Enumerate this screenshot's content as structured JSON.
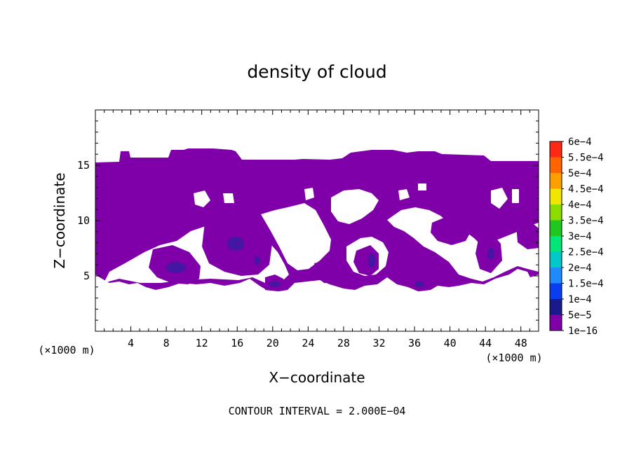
{
  "chart_data": {
    "type": "contour",
    "title": "density of cloud",
    "xlabel": "X−coordinate",
    "ylabel": "Z−coordinate",
    "x_unit": "(×1000 m)",
    "z_unit": "(×1000 m)",
    "xlim": [
      0,
      50
    ],
    "ylim": [
      0,
      20
    ],
    "xticks": [
      4,
      8,
      12,
      16,
      20,
      24,
      28,
      32,
      36,
      40,
      44,
      48
    ],
    "yticks": [
      5,
      10,
      15
    ],
    "contour_interval": "CONTOUR INTERVAL = 2.000E−04",
    "colorbar": {
      "levels": [
        "1e−16",
        "5e−5",
        "1e−4",
        "1.5e−4",
        "2e−4",
        "2.5e−4",
        "3e−4",
        "3.5e−4",
        "4e−4",
        "4.5e−4",
        "5e−4",
        "5.5e−4",
        "6e−4"
      ],
      "colors": [
        "#7f00a8",
        "#1a1a8c",
        "#0a3cf0",
        "#1e8cff",
        "#00c8c8",
        "#00e678",
        "#1ec81e",
        "#8cdc00",
        "#f0e600",
        "#ffa000",
        "#ff6400",
        "#ff2814",
        "#ff8c8c"
      ]
    },
    "cloud_layer": {
      "main_band_z": [
        4.5,
        15.4
      ],
      "max_value": "about 5e−5 in small cores",
      "core_x": [
        9.5,
        18,
        20,
        31,
        36
      ]
    }
  }
}
